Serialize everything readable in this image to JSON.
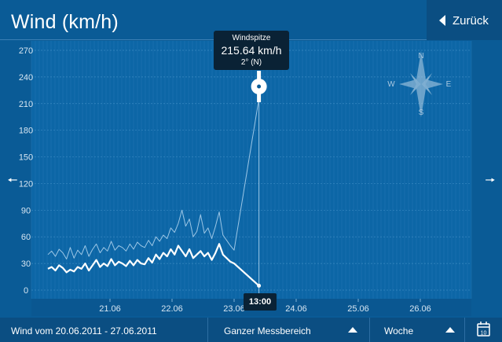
{
  "header": {
    "title": "Wind (km/h)",
    "back_label": "Zurück"
  },
  "nav": {
    "prev_icon": "arrow-left-icon",
    "next_icon": "arrow-right-icon"
  },
  "tooltip": {
    "title": "Windspitze",
    "value": "215.64 km/h",
    "direction": "2° (N)"
  },
  "time_badge": "13:00",
  "compass": {
    "n": "N",
    "e": "E",
    "s": "S",
    "w": "W"
  },
  "footer": {
    "range_label": "Wind vom 20.06.2011 - 27.06.2011",
    "range_select": "Ganzer Messbereich",
    "period_select": "Woche",
    "calendar_day": "10"
  },
  "colors": {
    "background": "#0a5b96",
    "dark": "#0b4e82",
    "tooltip": "#0a2235",
    "line": "#ffffff"
  },
  "chart_data": {
    "type": "line",
    "yticks": [
      0,
      30,
      60,
      90,
      120,
      150,
      180,
      210,
      240,
      270
    ],
    "ylim": [
      -10,
      280
    ],
    "xlim": [
      20.0,
      27.0
    ],
    "xticks": [
      21,
      22,
      23,
      24,
      25,
      26
    ],
    "xtick_labels": [
      "21.06",
      "22.06",
      "23.06",
      "24.06",
      "25.06",
      "26.06"
    ],
    "series": [
      {
        "role": "gust",
        "x": [
          20.0,
          20.06,
          20.12,
          20.18,
          20.24,
          20.3,
          20.36,
          20.42,
          20.48,
          20.54,
          20.6,
          20.66,
          20.72,
          20.78,
          20.84,
          20.9,
          20.96,
          21.02,
          21.08,
          21.14,
          21.2,
          21.26,
          21.32,
          21.38,
          21.44,
          21.5,
          21.56,
          21.62,
          21.68,
          21.74,
          21.8,
          21.86,
          21.92,
          21.98,
          22.04,
          22.1,
          22.16,
          22.22,
          22.28,
          22.34,
          22.4,
          22.46,
          22.52,
          22.58,
          22.64,
          22.7,
          22.76,
          22.82,
          22.88,
          22.94,
          23.0,
          23.4
        ],
        "y": [
          40,
          44,
          38,
          46,
          42,
          35,
          48,
          36,
          45,
          40,
          50,
          38,
          46,
          52,
          42,
          48,
          44,
          55,
          45,
          50,
          48,
          44,
          52,
          46,
          54,
          50,
          48,
          56,
          50,
          60,
          55,
          62,
          58,
          70,
          65,
          75,
          90,
          72,
          80,
          60,
          66,
          85,
          64,
          70,
          58,
          72,
          88,
          62,
          56,
          50,
          45,
          215.64
        ]
      },
      {
        "role": "average",
        "x": [
          20.0,
          20.06,
          20.12,
          20.18,
          20.24,
          20.3,
          20.36,
          20.42,
          20.48,
          20.54,
          20.6,
          20.66,
          20.72,
          20.78,
          20.84,
          20.9,
          20.96,
          21.02,
          21.08,
          21.14,
          21.2,
          21.26,
          21.32,
          21.38,
          21.44,
          21.5,
          21.56,
          21.62,
          21.68,
          21.74,
          21.8,
          21.86,
          21.92,
          21.98,
          22.04,
          22.1,
          22.16,
          22.22,
          22.28,
          22.34,
          22.4,
          22.46,
          22.52,
          22.58,
          22.64,
          22.7,
          22.76,
          22.82,
          22.88,
          22.94,
          23.0,
          23.4
        ],
        "y": [
          24,
          26,
          22,
          28,
          25,
          20,
          23,
          21,
          26,
          24,
          30,
          22,
          28,
          34,
          26,
          30,
          27,
          35,
          28,
          32,
          30,
          27,
          33,
          28,
          34,
          30,
          29,
          36,
          31,
          40,
          35,
          42,
          38,
          46,
          40,
          50,
          44,
          38,
          46,
          36,
          40,
          44,
          38,
          42,
          34,
          42,
          52,
          40,
          36,
          32,
          30,
          5
        ]
      }
    ],
    "marker": {
      "x": 23.4,
      "y": 215.64
    }
  }
}
